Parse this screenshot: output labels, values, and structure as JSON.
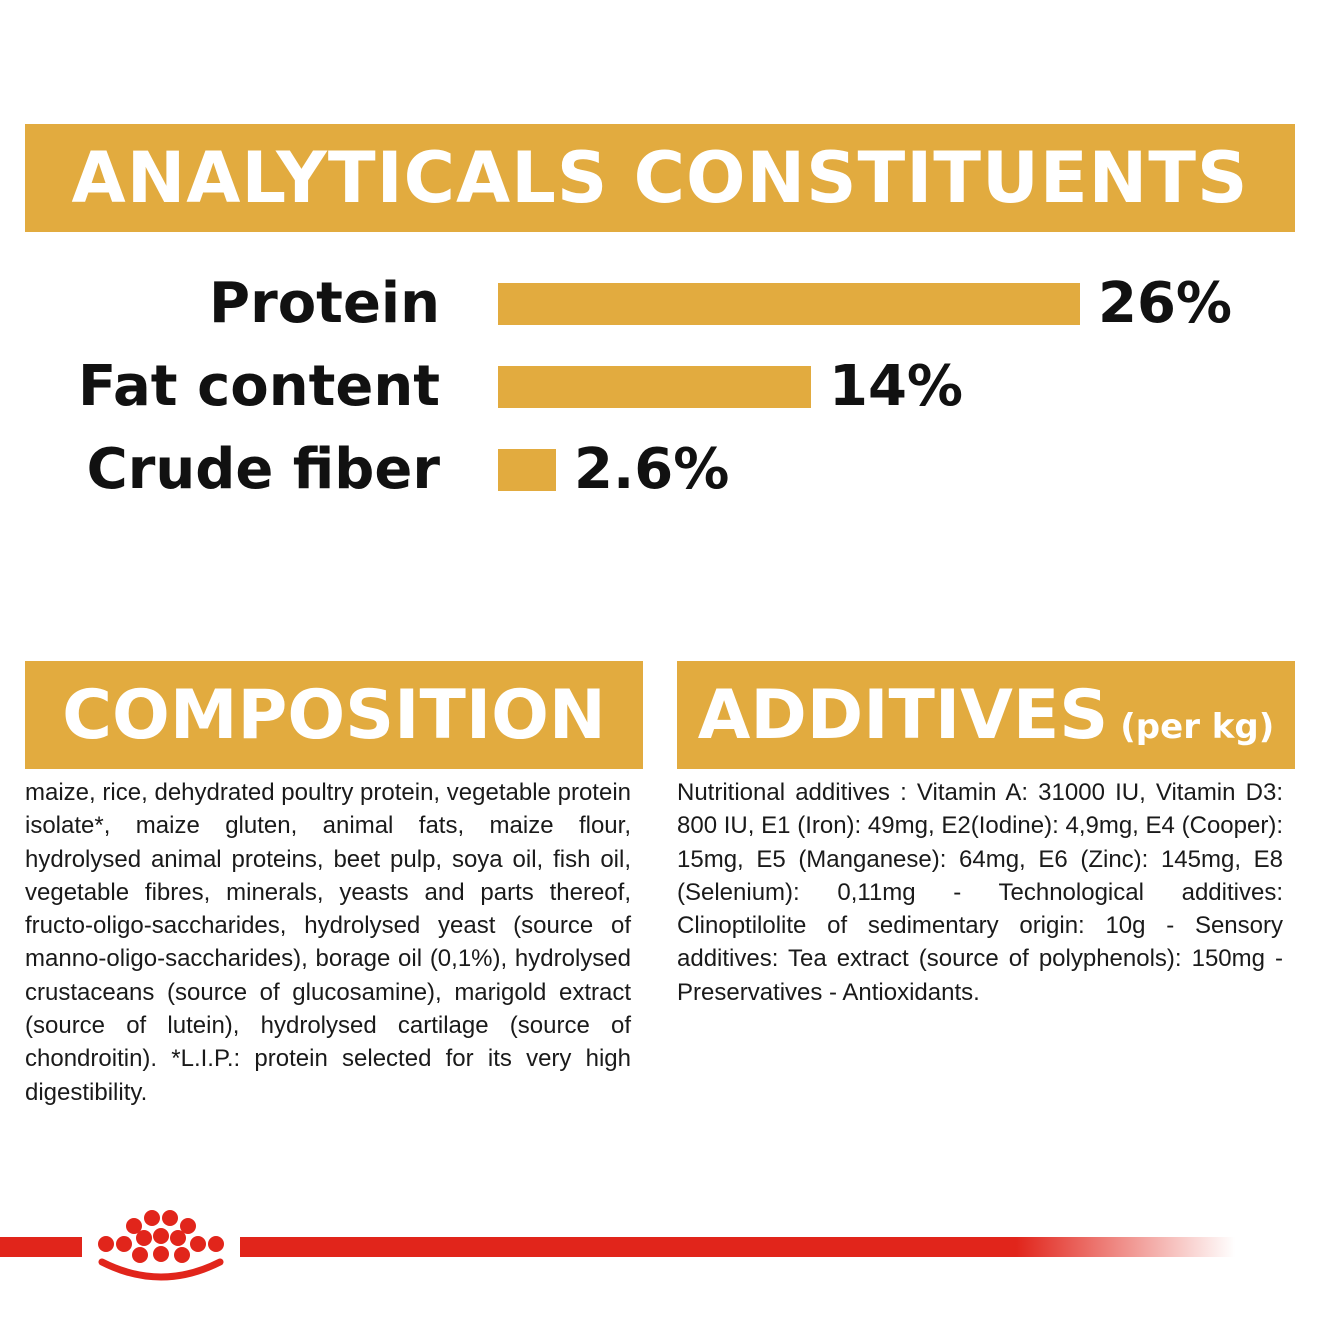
{
  "analytics": {
    "title": "ANALYTICALS CONSTITUENTS",
    "rows": [
      {
        "label": "Protein",
        "value": "26%",
        "fraction": 0.26
      },
      {
        "label": "Fat content",
        "value": "14%",
        "fraction": 0.14
      },
      {
        "label": "Crude fiber",
        "value": "2.6%",
        "fraction": 0.026
      }
    ]
  },
  "composition": {
    "title": "COMPOSITION",
    "text": "maize, rice, dehydrated poultry protein, vegetable protein isolate*, maize gluten, animal fats, maize flour, hydrolysed animal proteins, beet pulp, soya oil, fish oil, vegetable fibres, minerals, yeasts and parts thereof, fructo-oligo-saccharides, hydrolysed yeast (source of manno-oligo-saccharides), borage oil (0,1%), hydrolysed crustaceans (source of glucosamine), marigold extract (source of lutein), hydrolysed cartilage (source of chondroitin). *L.I.P.: protein selected for its very high digestibility."
  },
  "additives": {
    "title": "ADDITIVES",
    "unit": "(per kg)",
    "text": "Nutritional additives : Vitamin A: 31000 IU, Vitamin D3: 800 IU, E1 (Iron): 49mg, E2(Iodine): 4,9mg, E4 (Cooper): 15mg, E5 (Manganese): 64mg, E6 (Zinc): 145mg, E8 (Selenium): 0,11mg - Technological additives: Clinoptilolite of sedimentary origin: 10g - Sensory additives: Tea extract (source of polyphenols): 150mg - Preservatives - Antioxidants."
  },
  "colors": {
    "banner": "#e2ab3f",
    "brand_red": "#e1251b",
    "text": "#111111"
  },
  "icons": [
    "crown-logo"
  ]
}
